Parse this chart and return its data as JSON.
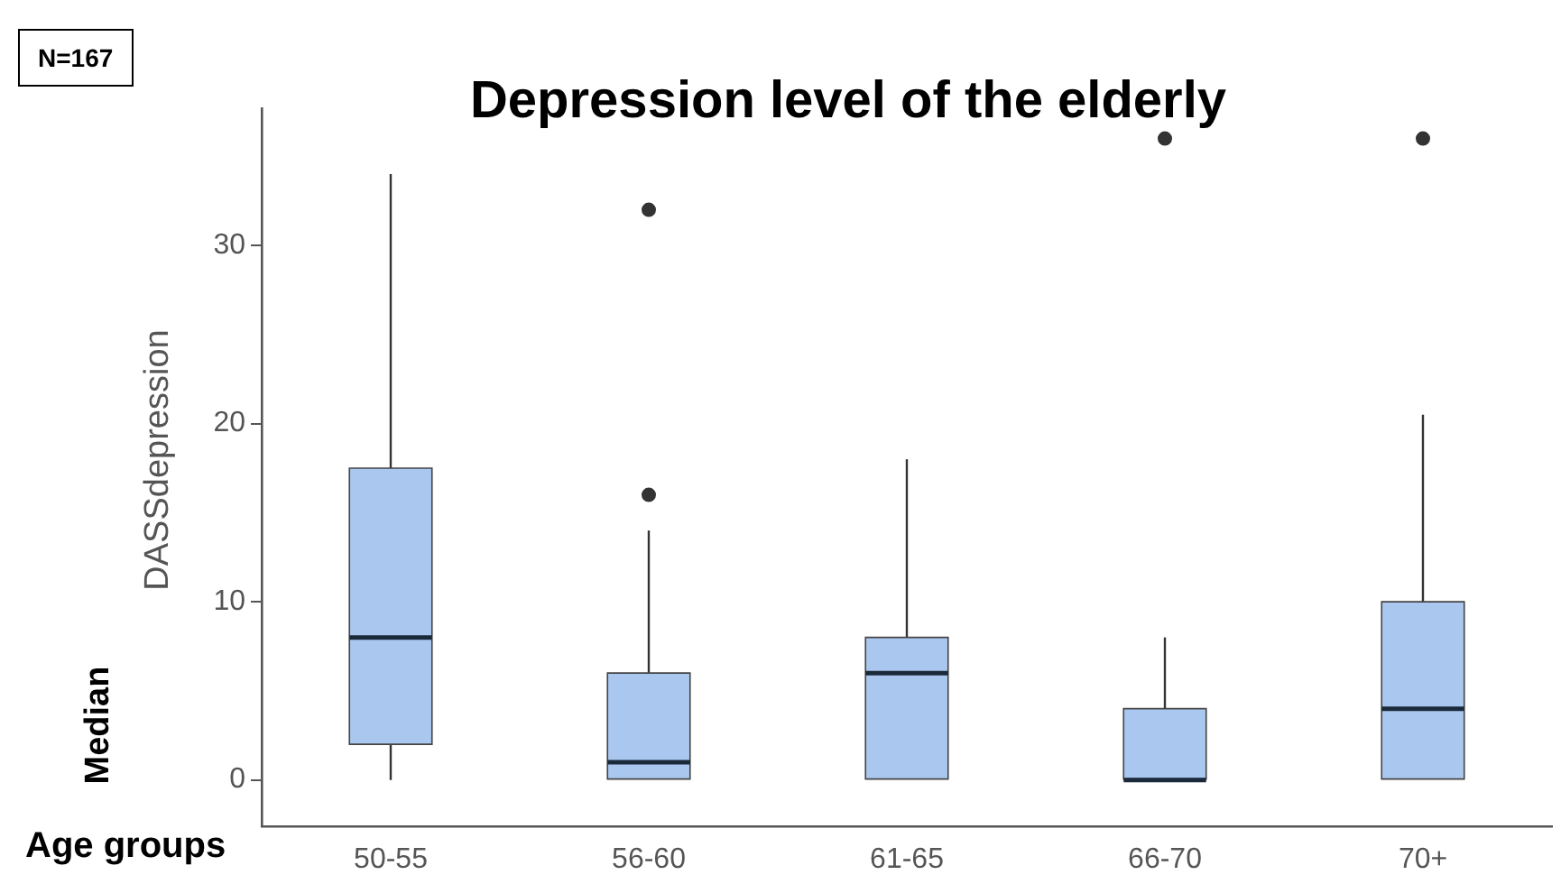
{
  "chart_data": {
    "type": "box",
    "title": "Depression level of the elderly",
    "ylabel": "DASSdepression",
    "annotations": [
      "N=167",
      "Median",
      "Age groups"
    ],
    "categories": [
      "50-55",
      "56-60",
      "61-65",
      "66-70",
      "70+"
    ],
    "boxes": [
      {
        "low": 0,
        "q1": 2,
        "median": 8,
        "q3": 17.5,
        "high": 34
      },
      {
        "low": 0,
        "q1": 0,
        "median": 1,
        "q3": 6,
        "high": 14,
        "outliers": [
          16,
          32
        ]
      },
      {
        "low": 0,
        "q1": 0,
        "median": 6,
        "q3": 8,
        "high": 18
      },
      {
        "low": 0,
        "q1": 0,
        "median": 0,
        "q3": 4,
        "high": 8,
        "outliers": [
          36
        ]
      },
      {
        "low": 0,
        "q1": 0,
        "median": 4,
        "q3": 10,
        "high": 20.5,
        "outliers": [
          36
        ]
      }
    ],
    "color": "#aac7ef",
    "ylim": [
      -2.6,
      37.7
    ],
    "yticks": [
      0,
      10,
      20,
      30
    ],
    "grid": false,
    "legend": false
  }
}
